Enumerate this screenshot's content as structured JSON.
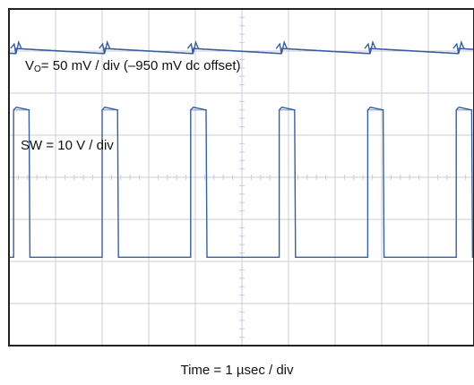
{
  "chart_data": {
    "type": "line",
    "title": "",
    "grid": true,
    "divisions": {
      "x": 10,
      "y": 8
    },
    "xlabel": "Time = 1 µsec / div",
    "x_unit_per_div": "1 µsec",
    "colors": {
      "grid": "#c8cdd8",
      "frame": "#222222",
      "trace": "#3a5f9c"
    },
    "annotations": {
      "vo_main": "V",
      "vo_sub": "O",
      "vo_rest": "= 50 mV / div (–950 mV dc offset)",
      "sw": "SW = 10 V / div"
    },
    "series": [
      {
        "name": "VO",
        "scale": "50 mV / div",
        "offset": "–950 mV dc",
        "switching_period_div": 1.9,
        "spike_times_div": [
          0.15,
          2.05,
          3.95,
          5.85,
          7.75,
          9.65
        ],
        "ripple_p2p_div": 0.12
      },
      {
        "name": "SW",
        "scale": "10 V / div",
        "switching_period_div": 1.9,
        "pulse_width_div": 0.35,
        "pulse_start_div": [
          0.1,
          2.0,
          3.9,
          5.8,
          7.7,
          9.6
        ],
        "high_level_div": 5.6,
        "low_level_div": 2.1
      }
    ]
  }
}
